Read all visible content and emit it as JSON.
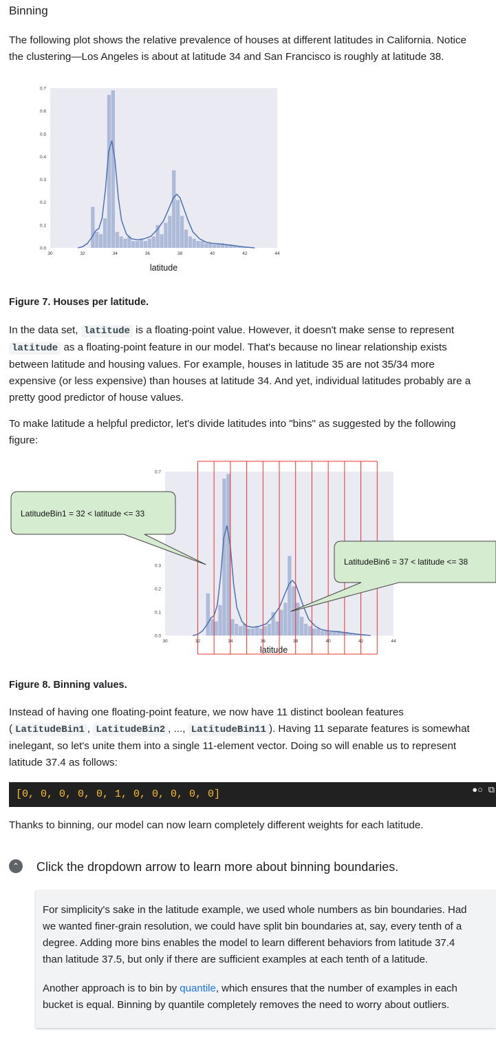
{
  "section_title": "Binning",
  "intro_paragraph": {
    "line1": "The following plot shows the relative prevalence of houses at different latitudes in California. Notice",
    "line2": "the clustering—Los Angeles is about at latitude 34 and San Francisco is roughly at latitude 38."
  },
  "chart_data": [
    {
      "type": "bar",
      "xlabel": "latitude",
      "xlim": [
        30,
        44
      ],
      "ylim": [
        0,
        0.7
      ],
      "x_ticks": [
        "30",
        "32",
        "34",
        "36",
        "38",
        "40",
        "42",
        "44"
      ],
      "y_ticks": [
        "0.0",
        "0.1",
        "0.2",
        "0.3",
        "0.4",
        "0.5",
        "0.6",
        "0.7"
      ],
      "bin_width": 0.25,
      "bin_starts": [
        32.5,
        32.75,
        33.0,
        33.25,
        33.5,
        33.75,
        34.0,
        34.25,
        34.5,
        34.75,
        35.0,
        35.25,
        35.5,
        35.75,
        36.0,
        36.25,
        36.5,
        36.75,
        37.0,
        37.25,
        37.5,
        37.75,
        38.0,
        38.25,
        38.5,
        38.75,
        39.0,
        39.25,
        39.5,
        39.75,
        40.0,
        40.25,
        40.5,
        40.75,
        41.0,
        41.25,
        41.5,
        41.75,
        42.0
      ],
      "values": [
        0.18,
        0.07,
        0.06,
        0.13,
        0.67,
        0.69,
        0.07,
        0.05,
        0.04,
        0.05,
        0.03,
        0.03,
        0.04,
        0.03,
        0.04,
        0.05,
        0.1,
        0.06,
        0.11,
        0.14,
        0.34,
        0.21,
        0.14,
        0.08,
        0.05,
        0.04,
        0.03,
        0.03,
        0.02,
        0.02,
        0.015,
        0.015,
        0.02,
        0.015,
        0.015,
        0.01,
        0.005,
        0.005,
        0.005
      ],
      "kde": [
        [
          31.7,
          0.0
        ],
        [
          32.0,
          0.005
        ],
        [
          32.3,
          0.02
        ],
        [
          32.6,
          0.05
        ],
        [
          32.8,
          0.075
        ],
        [
          33.0,
          0.085
        ],
        [
          33.2,
          0.13
        ],
        [
          33.4,
          0.25
        ],
        [
          33.6,
          0.42
        ],
        [
          33.8,
          0.47
        ],
        [
          34.0,
          0.38
        ],
        [
          34.2,
          0.22
        ],
        [
          34.4,
          0.12
        ],
        [
          34.7,
          0.06
        ],
        [
          35.0,
          0.04
        ],
        [
          35.4,
          0.035
        ],
        [
          35.8,
          0.04
        ],
        [
          36.2,
          0.05
        ],
        [
          36.6,
          0.08
        ],
        [
          37.0,
          0.12
        ],
        [
          37.3,
          0.17
        ],
        [
          37.6,
          0.22
        ],
        [
          37.8,
          0.235
        ],
        [
          38.0,
          0.22
        ],
        [
          38.2,
          0.18
        ],
        [
          38.5,
          0.12
        ],
        [
          38.8,
          0.07
        ],
        [
          39.2,
          0.04
        ],
        [
          39.6,
          0.025
        ],
        [
          40.0,
          0.02
        ],
        [
          40.5,
          0.017
        ],
        [
          41.0,
          0.013
        ],
        [
          41.5,
          0.008
        ],
        [
          42.0,
          0.004
        ],
        [
          42.6,
          0.0
        ]
      ]
    },
    {
      "type": "bar",
      "xlabel": "latitude",
      "xlim": [
        30,
        44
      ],
      "ylim": [
        0,
        0.7
      ],
      "x_ticks": [
        "30",
        "32",
        "34",
        "36",
        "38",
        "40",
        "42",
        "44"
      ],
      "y_ticks": [
        "0.0",
        "0.1",
        "0.2",
        "0.3",
        "0.7"
      ],
      "bin_boundaries": [
        32,
        33,
        34,
        35,
        36,
        37,
        38,
        39,
        40,
        41,
        42,
        43
      ],
      "annotations": [
        {
          "text": "LatitudeBin1 = 32 < latitude <= 33",
          "points_to_latitude": 32.5
        },
        {
          "text": "LatitudeBin6 = 37 < latitude <= 38",
          "points_to_latitude": 37.7
        }
      ]
    }
  ],
  "figure7_caption": "Figure 7. Houses per latitude.",
  "para_floating": {
    "a1": "In the data set, ",
    "code1": "latitude",
    "a2": " is a floating-point value. However, it doesn't make sense to represent",
    "code2": "latitude",
    "b2": " as a floating-point feature in our model. That's because no linear relationship exists",
    "line3": "between latitude and housing values. For example, houses in latitude 35 are not 35/34 more",
    "line4": "expensive (or less expensive) than houses at latitude 34. And yet, individual latitudes probably are a",
    "line5": "pretty good predictor of house values."
  },
  "para_divide": {
    "line1": "To make latitude a helpful predictor, let's divide latitudes into \"bins\" as suggested by the following",
    "line2": "figure:"
  },
  "figure8_caption": "Figure 8. Binning values.",
  "para_features": {
    "line1": "Instead of having one floating-point feature, we now have 11 distinct boolean features",
    "open_paren": "(",
    "code1": "LatitudeBin1",
    "comma1": ", ",
    "code2": "LatitudeBin2",
    "mid": ", ..., ",
    "code3": "LatitudeBin11",
    "after": "). Having 11 separate features is somewhat",
    "line3": "inelegant, so let's unite them into a single 11-element vector. Doing so will enable us to represent",
    "line4": "latitude 37.4 as follows:"
  },
  "code_block": {
    "text": "[0, 0, 0, 0, 0, 1, 0, 0, 0, 0, 0]",
    "icon_theme": "dark-mode-toggle-icon",
    "icon_copy": "copy-icon"
  },
  "para_thanks": "Thanks to binning, our model can now learn completely different weights for each latitude.",
  "expander": {
    "title": "Click the dropdown arrow to learn more about binning boundaries.",
    "icon": "chevron-up-icon",
    "p1": {
      "line1": "For simplicity's sake in the latitude example, we used whole numbers as bin boundaries. Had",
      "line2": "we wanted finer-grain resolution, we could have split bin boundaries at, say, every tenth of a",
      "line3": "degree. Adding more bins enables the model to learn different behaviors from latitude 37.4",
      "line4": "than latitude 37.5, but only if there are sufficient examples at each tenth of a latitude."
    },
    "p2": {
      "a1": "Another approach is to bin by ",
      "link": "quantile",
      "a2": ", which ensures that the number of examples in each",
      "line2": "bucket is equal. Binning by quantile completely removes the need to worry about outliers."
    }
  },
  "colors": {
    "plot_bg": "#eaeaf2",
    "bar_fill": "#a6b5d5",
    "kde_line": "#4c72b0",
    "bin_lines": "#e8332b",
    "callout_bg": "#d6ecd0",
    "code_bg": "#212121",
    "code_text": "#fbc02d",
    "link": "#1a73e8"
  }
}
